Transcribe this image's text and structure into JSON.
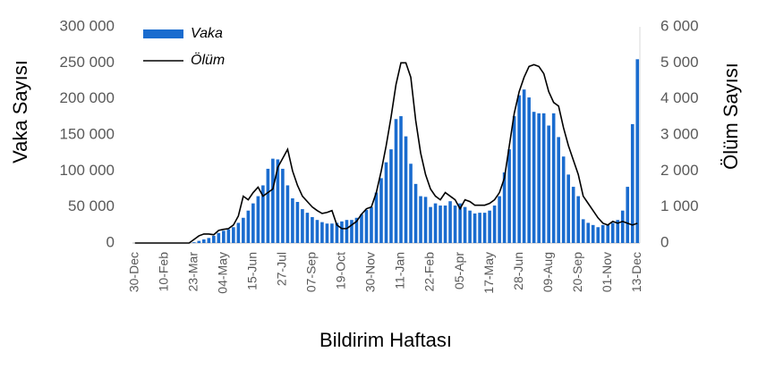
{
  "chart_data": {
    "type": "bar",
    "x_title": "Bildirim Haftası",
    "y_title": "Vaka Sayısı",
    "y2_title": "Ölüm Sayısı",
    "categories": [
      "30-Dec",
      null,
      null,
      null,
      null,
      null,
      "10-Feb",
      null,
      null,
      null,
      null,
      null,
      "23-Mar",
      null,
      null,
      null,
      null,
      null,
      "04-May",
      null,
      null,
      null,
      null,
      null,
      "15-Jun",
      null,
      null,
      null,
      null,
      null,
      "27-Jul",
      null,
      null,
      null,
      null,
      null,
      "07-Sep",
      null,
      null,
      null,
      null,
      null,
      "19-Oct",
      null,
      null,
      null,
      null,
      null,
      "30-Nov",
      null,
      null,
      null,
      null,
      null,
      "11-Jan",
      null,
      null,
      null,
      null,
      null,
      "22-Feb",
      null,
      null,
      null,
      null,
      null,
      "05-Apr",
      null,
      null,
      null,
      null,
      null,
      "17-May",
      null,
      null,
      null,
      null,
      null,
      "28-Jun",
      null,
      null,
      null,
      null,
      null,
      "09-Aug",
      null,
      null,
      null,
      null,
      null,
      "20-Sep",
      null,
      null,
      null,
      null,
      null,
      "01-Nov",
      null,
      null,
      null,
      null,
      null,
      "13-Dec"
    ],
    "series": [
      {
        "name": "Vaka",
        "type": "bar",
        "color": "#1a6ccf",
        "values": [
          0,
          0,
          0,
          0,
          0,
          0,
          0,
          0,
          0,
          0,
          0,
          0,
          1000,
          3000,
          5000,
          7000,
          10000,
          14000,
          17000,
          19000,
          22000,
          28000,
          35000,
          45000,
          55000,
          65000,
          80000,
          103000,
          117000,
          116000,
          103000,
          80000,
          62000,
          57000,
          47000,
          42000,
          36000,
          32000,
          29000,
          27000,
          27000,
          28000,
          30000,
          32000,
          32000,
          35000,
          40000,
          46000,
          50000,
          70000,
          90000,
          112000,
          130000,
          172000,
          176000,
          148000,
          110000,
          82000,
          65000,
          64000,
          50000,
          55000,
          52000,
          52000,
          58000,
          52000,
          55000,
          50000,
          45000,
          41000,
          42000,
          42000,
          45000,
          52000,
          65000,
          98000,
          130000,
          176000,
          205000,
          213000,
          202000,
          182000,
          180000,
          180000,
          163000,
          180000,
          147000,
          120000,
          95000,
          78000,
          65000,
          33000,
          28000,
          25000,
          22000,
          25000,
          25000,
          28000,
          32000,
          45000,
          78000,
          165000,
          255000
        ]
      },
      {
        "name": "Ölüm",
        "type": "line",
        "axis": "y2",
        "color": "#000000",
        "values": [
          0,
          0,
          0,
          0,
          0,
          0,
          0,
          0,
          0,
          0,
          0,
          0,
          100,
          200,
          250,
          250,
          230,
          350,
          380,
          400,
          500,
          750,
          1300,
          1200,
          1400,
          1550,
          1300,
          1400,
          1500,
          2100,
          2350,
          2600,
          2000,
          1600,
          1300,
          1150,
          1000,
          900,
          820,
          850,
          900,
          500,
          400,
          400,
          500,
          600,
          800,
          950,
          1000,
          1400,
          2000,
          2700,
          3500,
          4400,
          5000,
          5000,
          4600,
          3400,
          2500,
          1900,
          1500,
          1300,
          1200,
          1400,
          1300,
          1200,
          950,
          1200,
          1150,
          1050,
          1050,
          1050,
          1100,
          1200,
          1400,
          1800,
          2700,
          3600,
          4200,
          4600,
          4900,
          4950,
          4900,
          4700,
          4200,
          3900,
          3800,
          3200,
          2700,
          2300,
          1900,
          1300,
          1100,
          900,
          700,
          550,
          500,
          600,
          550,
          600,
          550,
          500,
          550
        ]
      }
    ],
    "ylim": [
      0,
      300000
    ],
    "yticks": [
      0,
      {
        "value": 50000,
        "label": "50 000"
      },
      {
        "value": 100000,
        "label": "100 000"
      },
      {
        "value": 150000,
        "label": "150 000"
      },
      {
        "value": 200000,
        "label": "200 000"
      },
      {
        "value": 250000,
        "label": "250 000"
      },
      {
        "value": 300000,
        "label": "300 000"
      }
    ],
    "y2lim": [
      0,
      6000
    ],
    "y2ticks": [
      0,
      {
        "value": 1000,
        "label": "1 000"
      },
      {
        "value": 2000,
        "label": "2 000"
      },
      {
        "value": 3000,
        "label": "3 000"
      },
      {
        "value": 4000,
        "label": "4 000"
      },
      {
        "value": 5000,
        "label": "5 000"
      },
      {
        "value": 6000,
        "label": "6 000"
      }
    ]
  }
}
